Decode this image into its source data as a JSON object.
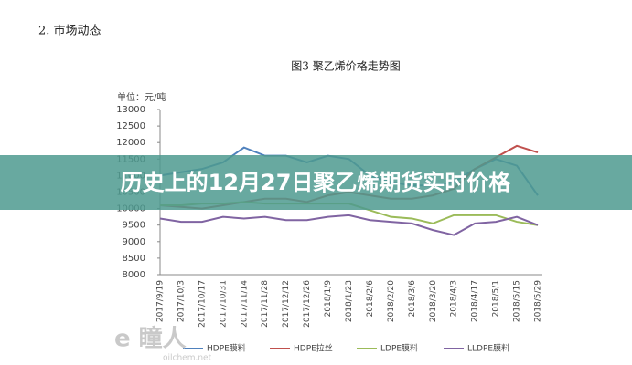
{
  "section_heading": "2.  市场动态",
  "banner": "历史上的12月27日聚乙烯期货实时价格",
  "watermark": {
    "logo": "e 瞳人",
    "site": "oilchem.net"
  },
  "chart_data": {
    "type": "line",
    "title": "图3 聚乙烯价格走势图",
    "y_label": "单位：元/吨",
    "categories": [
      "2017/9/19",
      "2017/10/3",
      "2017/10/17",
      "2017/10/31",
      "2017/11/14",
      "2017/11/28",
      "2017/12/12",
      "2017/12/26",
      "2018/1/9",
      "2018/1/23",
      "2018/2/6",
      "2018/2/20",
      "2018/3/6",
      "2018/3/20",
      "2018/4/3",
      "2018/4/17",
      "2018/5/1",
      "2018/5/15",
      "2018/5/29"
    ],
    "series": [
      {
        "name": "HDPE膜料",
        "color": "#4f81bd",
        "values": [
          11000,
          11100,
          11200,
          11400,
          11850,
          11600,
          11600,
          11400,
          11600,
          11500,
          11000,
          10800,
          10700,
          10700,
          10800,
          11200,
          11500,
          11300,
          10400
        ]
      },
      {
        "name": "HDPE拉丝",
        "color": "#c0504d",
        "values": [
          10100,
          10050,
          10000,
          10100,
          10200,
          10300,
          10300,
          10200,
          10400,
          10500,
          10400,
          10300,
          10300,
          10400,
          10600,
          11200,
          11550,
          11900,
          11700
        ]
      },
      {
        "name": "LDPE膜料",
        "color": "#9bbb59",
        "values": [
          10100,
          10100,
          10150,
          10150,
          10200,
          10150,
          10150,
          10150,
          10150,
          10150,
          9950,
          9750,
          9700,
          9550,
          9800,
          9800,
          9800,
          9600,
          9500
        ]
      },
      {
        "name": "LLDPE膜料",
        "color": "#8064a2",
        "values": [
          9700,
          9600,
          9600,
          9750,
          9700,
          9750,
          9650,
          9650,
          9750,
          9800,
          9650,
          9600,
          9550,
          9350,
          9200,
          9550,
          9600,
          9750,
          9500
        ]
      }
    ],
    "ylim": [
      8000,
      13000
    ],
    "yticks": [
      8000,
      8500,
      9000,
      9500,
      10000,
      10500,
      11000,
      11500,
      12000,
      12500,
      13000
    ],
    "grid": false
  }
}
